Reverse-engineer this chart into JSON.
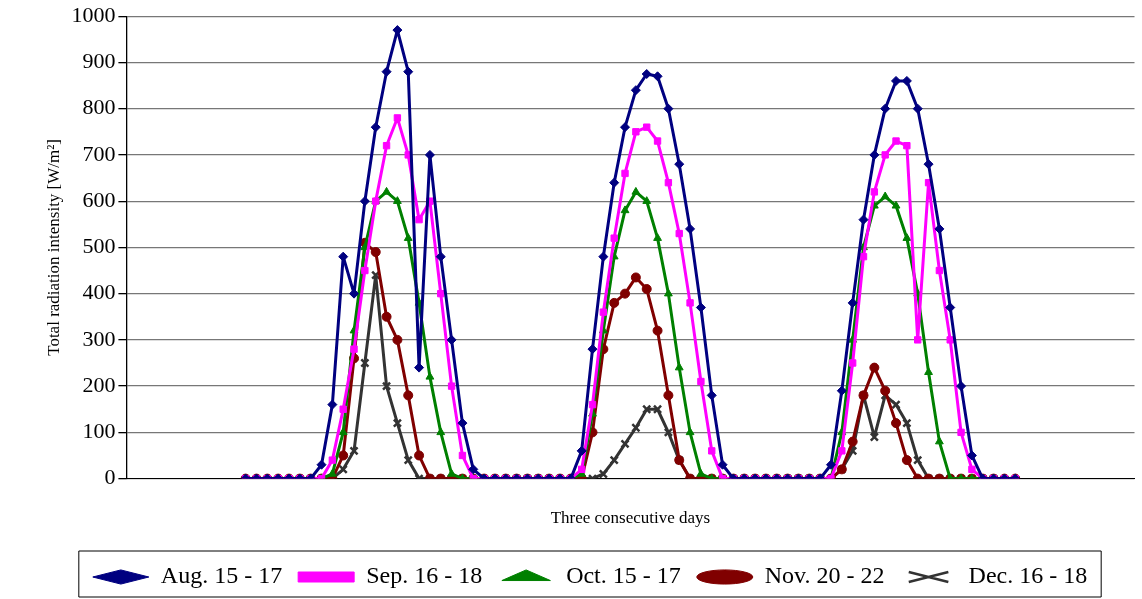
{
  "chart_data": {
    "type": "line",
    "xlabel": "Three consecutive days",
    "ylabel": "Total radiation intensity [W/m²]",
    "ylim": [
      0,
      1000
    ],
    "yticks": [
      0,
      100,
      200,
      300,
      400,
      500,
      600,
      700,
      800,
      900,
      1000
    ],
    "grid": "y",
    "legend": "bottom",
    "tick_labels": "y",
    "line_style": "solid",
    "categories": [
      null,
      null,
      null,
      null,
      null,
      null,
      null,
      null,
      null,
      null,
      null,
      null,
      null,
      null,
      null,
      null,
      null,
      null,
      null,
      null,
      null,
      null,
      null,
      null,
      null,
      null,
      null,
      null,
      null,
      null,
      null,
      null,
      null,
      null,
      null,
      null,
      null,
      null,
      null,
      null,
      null,
      null,
      null,
      null,
      null,
      null,
      null,
      null,
      null,
      null,
      null,
      null,
      null,
      null,
      null,
      null,
      null,
      null,
      null,
      null,
      null,
      null,
      null,
      null,
      null,
      null,
      null,
      null,
      null,
      null,
      null,
      null,
      null,
      null,
      null,
      null,
      null,
      null,
      null,
      null,
      null,
      null,
      null,
      null,
      null,
      null,
      null,
      null,
      null,
      null,
      null,
      null,
      null,
      null
    ],
    "series": [
      {
        "name": "Aug. 15 - 17",
        "color": "#000080",
        "marker": "diamond",
        "values": [
          null,
          null,
          null,
          null,
          null,
          null,
          null,
          null,
          null,
          null,
          null,
          0,
          0,
          0,
          0,
          0,
          0,
          0,
          30,
          160,
          480,
          400,
          600,
          760,
          880,
          970,
          880,
          240,
          700,
          480,
          300,
          120,
          20,
          0,
          0,
          0,
          0,
          0,
          0,
          0,
          0,
          0,
          60,
          280,
          480,
          640,
          760,
          840,
          875,
          870,
          800,
          680,
          540,
          370,
          180,
          30,
          0,
          0,
          0,
          0,
          0,
          0,
          0,
          0,
          0,
          30,
          190,
          380,
          560,
          700,
          800,
          860,
          860,
          800,
          680,
          540,
          370,
          200,
          50,
          0,
          0,
          0,
          0,
          null,
          null,
          null,
          null,
          null,
          null,
          null,
          null,
          null,
          null,
          null
        ]
      },
      {
        "name": "Sep. 16 - 18",
        "color": "#ff00ff",
        "marker": "square",
        "values": [
          null,
          null,
          null,
          null,
          null,
          null,
          null,
          null,
          null,
          null,
          null,
          0,
          0,
          0,
          0,
          0,
          0,
          0,
          0,
          40,
          150,
          280,
          450,
          600,
          720,
          780,
          700,
          560,
          600,
          400,
          200,
          50,
          0,
          0,
          0,
          0,
          0,
          0,
          0,
          0,
          0,
          0,
          20,
          160,
          360,
          520,
          660,
          750,
          760,
          730,
          640,
          530,
          380,
          210,
          60,
          0,
          0,
          0,
          0,
          0,
          0,
          0,
          0,
          0,
          0,
          0,
          60,
          250,
          480,
          620,
          700,
          730,
          720,
          300,
          640,
          450,
          300,
          100,
          20,
          0,
          0,
          0,
          0,
          null,
          null,
          null,
          null,
          null,
          null,
          null,
          null,
          null,
          null,
          null
        ]
      },
      {
        "name": "Oct. 15 - 17",
        "color": "#008000",
        "marker": "triangle",
        "values": [
          null,
          null,
          null,
          null,
          null,
          null,
          null,
          null,
          null,
          null,
          null,
          null,
          null,
          null,
          null,
          null,
          null,
          0,
          0,
          10,
          100,
          320,
          500,
          600,
          620,
          600,
          520,
          380,
          220,
          100,
          10,
          0,
          0,
          0,
          0,
          0,
          0,
          0,
          0,
          0,
          0,
          0,
          10,
          140,
          320,
          480,
          580,
          620,
          600,
          520,
          400,
          240,
          100,
          10,
          0,
          0,
          0,
          0,
          0,
          0,
          0,
          0,
          0,
          0,
          0,
          0,
          100,
          300,
          500,
          590,
          610,
          590,
          520,
          400,
          230,
          80,
          0,
          0,
          0,
          0,
          0,
          null,
          null,
          null,
          null,
          null,
          null,
          null,
          null,
          null,
          null,
          null,
          null,
          null
        ]
      },
      {
        "name": "Nov. 20 - 22",
        "color": "#800000",
        "marker": "circle",
        "values": [
          null,
          null,
          null,
          null,
          null,
          null,
          null,
          null,
          null,
          null,
          null,
          0,
          0,
          0,
          0,
          0,
          0,
          0,
          0,
          0,
          50,
          260,
          510,
          490,
          350,
          300,
          180,
          50,
          0,
          0,
          0,
          0,
          0,
          0,
          0,
          0,
          0,
          0,
          0,
          0,
          0,
          0,
          0,
          100,
          280,
          380,
          400,
          435,
          410,
          320,
          180,
          40,
          0,
          0,
          0,
          0,
          0,
          0,
          0,
          0,
          0,
          0,
          0,
          0,
          0,
          0,
          20,
          80,
          180,
          240,
          190,
          120,
          40,
          0,
          0,
          0,
          0,
          0,
          0,
          0,
          0,
          0,
          0,
          null,
          null,
          null,
          null,
          null,
          null,
          null,
          null,
          null,
          null,
          null
        ]
      },
      {
        "name": "Dec. 16 - 18",
        "color": "#333333",
        "marker": "cross",
        "values": [
          null,
          null,
          null,
          null,
          null,
          null,
          null,
          null,
          null,
          null,
          null,
          null,
          null,
          null,
          null,
          null,
          0,
          0,
          0,
          0,
          20,
          60,
          250,
          440,
          200,
          120,
          40,
          0,
          0,
          0,
          0,
          0,
          0,
          0,
          0,
          0,
          0,
          0,
          0,
          0,
          0,
          0,
          0,
          0,
          10,
          40,
          75,
          110,
          150,
          150,
          100,
          40,
          0,
          0,
          0,
          0,
          0,
          0,
          0,
          0,
          0,
          0,
          0,
          0,
          0,
          0,
          20,
          60,
          180,
          90,
          180,
          160,
          120,
          40,
          0,
          0,
          0,
          0,
          0,
          0,
          0,
          null,
          null,
          null,
          null,
          null,
          null,
          null,
          null,
          null,
          null,
          null,
          null,
          null
        ]
      }
    ]
  }
}
